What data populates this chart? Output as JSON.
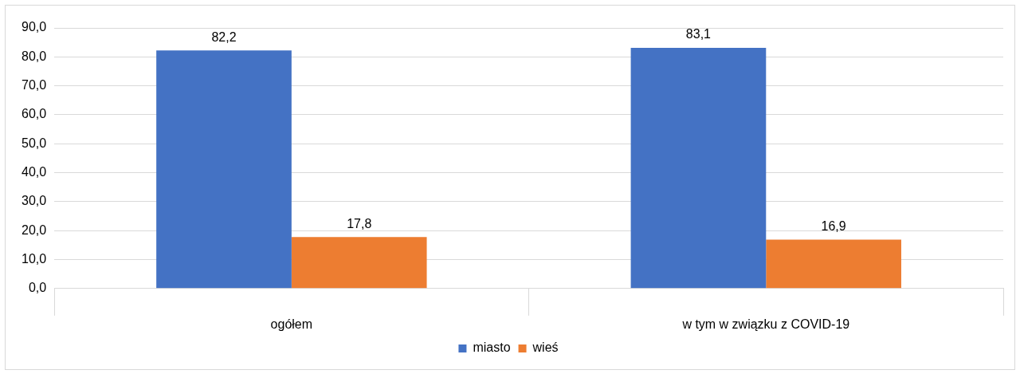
{
  "chart_data": {
    "type": "bar",
    "categories": [
      "ogółem",
      "w tym w związku z COVID-19"
    ],
    "series": [
      {
        "name": "miasto",
        "color": "#4472c4",
        "values": [
          82.2,
          83.1
        ],
        "value_labels": [
          "82,2",
          "83,1"
        ]
      },
      {
        "name": "wieś",
        "color": "#ed7d31",
        "values": [
          17.8,
          16.9
        ],
        "value_labels": [
          "17,8",
          "16,9"
        ]
      }
    ],
    "ylim": [
      0,
      90
    ],
    "yticks": [
      {
        "value": 0,
        "label": "0,0"
      },
      {
        "value": 10,
        "label": "10,0"
      },
      {
        "value": 20,
        "label": "20,0"
      },
      {
        "value": 30,
        "label": "30,0"
      },
      {
        "value": 40,
        "label": "40,0"
      },
      {
        "value": 50,
        "label": "50,0"
      },
      {
        "value": 60,
        "label": "60,0"
      },
      {
        "value": 70,
        "label": "70,0"
      },
      {
        "value": 80,
        "label": "80,0"
      },
      {
        "value": 90,
        "label": "90,0"
      }
    ],
    "grid": "y",
    "legend": "bottom"
  }
}
